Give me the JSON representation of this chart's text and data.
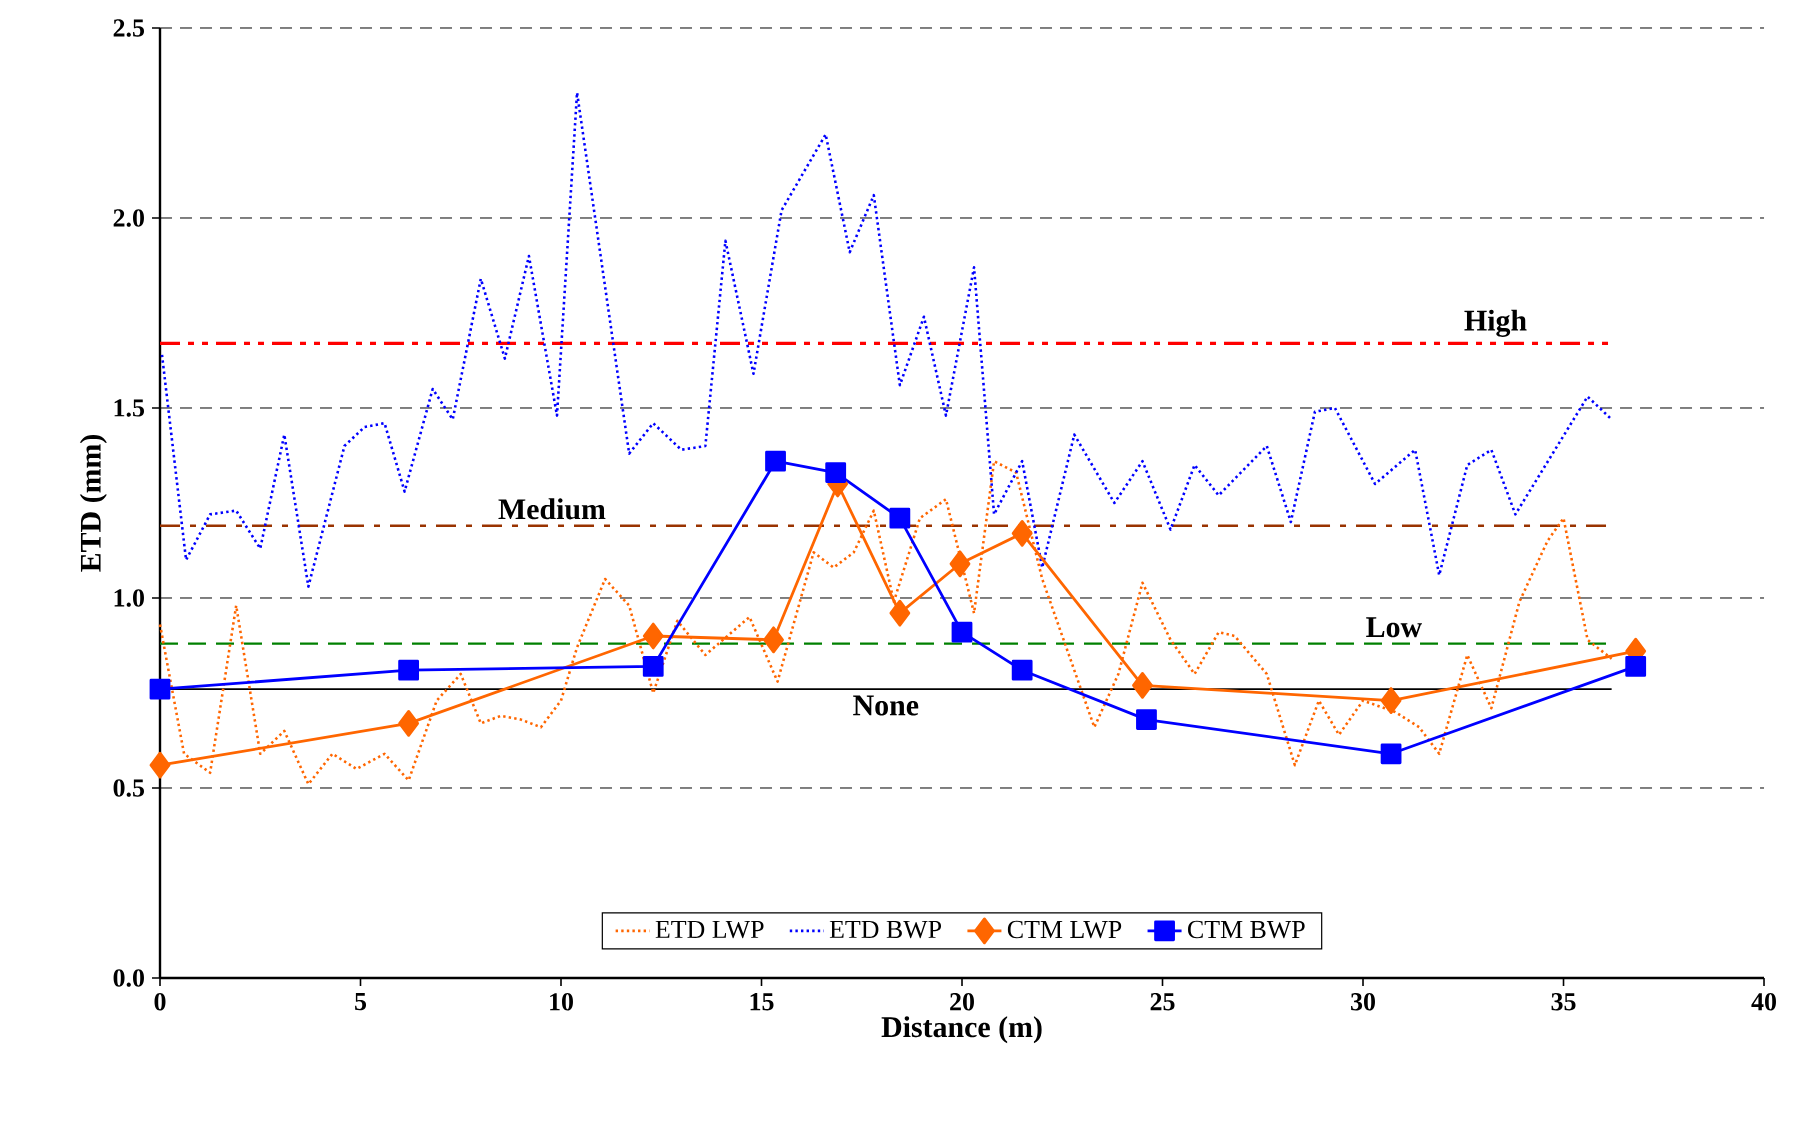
{
  "chart_data": {
    "type": "line",
    "xlabel": "Distance (m)",
    "ylabel": "ETD (mm)",
    "xlim": [
      0,
      40
    ],
    "xticks": [
      0,
      5,
      10,
      15,
      20,
      25,
      30,
      35,
      40
    ],
    "ylim": [
      0,
      2.5
    ],
    "yticks": [
      {
        "value": 0,
        "label": "0.0"
      },
      {
        "value": 0.5,
        "label": "0.5"
      },
      {
        "value": 1,
        "label": "1.0"
      },
      {
        "value": 1.5,
        "label": "1.5"
      },
      {
        "value": 2,
        "label": "2.0"
      },
      {
        "value": 2.5,
        "label": "2.5"
      }
    ],
    "grid": "y",
    "legend": "bottom",
    "ref_lines": [
      {
        "axis": "y",
        "value": 1.67,
        "label": "High",
        "color": "#ff0000",
        "line_style": "dashdotdot"
      },
      {
        "axis": "y",
        "value": 1.19,
        "label": "Medium",
        "color": "#993300",
        "line_style": "dashdot"
      },
      {
        "axis": "y",
        "value": 0.88,
        "label": "Low",
        "color": "#008000",
        "line_style": "dashed"
      },
      {
        "axis": "y",
        "value": 0.76,
        "label": "None",
        "color": "#000000",
        "line_style": "solid"
      }
    ],
    "series": [
      {
        "name": "ETD LWP",
        "color": "#ff6600",
        "marker": "none",
        "line_style": "dotted",
        "x": [
          0,
          0.6,
          1.25,
          1.9,
          2.5,
          3.1,
          3.7,
          4.3,
          4.9,
          5.6,
          6.2,
          6.9,
          7.5,
          8.0,
          8.5,
          9.0,
          9.5,
          10.0,
          10.4,
          11.1,
          11.7,
          12.3,
          12.9,
          13.6,
          14.7,
          15.4,
          16.3,
          16.8,
          17.3,
          17.8,
          18.3,
          18.95,
          19.6,
          20.3,
          20.8,
          21.35,
          22.0,
          22.7,
          23.3,
          23.9,
          24.5,
          25.2,
          25.8,
          26.4,
          26.8,
          27.6,
          28.3,
          28.9,
          29.4,
          30.0,
          30.8,
          31.4,
          31.9,
          32.6,
          33.2,
          33.9,
          34.6,
          35.0,
          35.6,
          36.2
        ],
        "values": [
          0.93,
          0.59,
          0.54,
          0.98,
          0.59,
          0.65,
          0.51,
          0.59,
          0.55,
          0.59,
          0.52,
          0.73,
          0.8,
          0.67,
          0.69,
          0.68,
          0.66,
          0.73,
          0.87,
          1.05,
          0.98,
          0.75,
          0.94,
          0.85,
          0.95,
          0.78,
          1.12,
          1.08,
          1.12,
          1.23,
          0.99,
          1.21,
          1.26,
          0.96,
          1.36,
          1.33,
          1.05,
          0.84,
          0.66,
          0.8,
          1.04,
          0.89,
          0.8,
          0.91,
          0.9,
          0.8,
          0.56,
          0.73,
          0.64,
          0.73,
          0.7,
          0.66,
          0.59,
          0.85,
          0.71,
          0.99,
          1.15,
          1.21,
          0.89,
          0.84
        ]
      },
      {
        "name": "ETD BWP",
        "color": "#0000ff",
        "marker": "none",
        "line_style": "dotted",
        "x": [
          0.05,
          0.65,
          1.25,
          1.9,
          2.5,
          3.1,
          3.7,
          4.6,
          5.1,
          5.6,
          6.1,
          6.8,
          7.3,
          8.0,
          8.6,
          9.2,
          9.9,
          10.4,
          11.7,
          12.3,
          13.0,
          13.6,
          14.1,
          14.8,
          15.5,
          16.6,
          17.2,
          17.8,
          18.45,
          19.05,
          19.6,
          20.3,
          20.8,
          21.5,
          22.0,
          22.8,
          23.8,
          24.5,
          25.2,
          25.8,
          26.4,
          27.6,
          28.2,
          28.8,
          29.3,
          30.3,
          31.3,
          31.9,
          32.6,
          33.2,
          33.8,
          35.6,
          36.2
        ],
        "values": [
          1.64,
          1.1,
          1.22,
          1.23,
          1.13,
          1.43,
          1.03,
          1.4,
          1.45,
          1.46,
          1.28,
          1.55,
          1.47,
          1.84,
          1.63,
          1.9,
          1.48,
          2.33,
          1.38,
          1.46,
          1.39,
          1.4,
          1.94,
          1.59,
          2.02,
          2.22,
          1.91,
          2.06,
          1.56,
          1.74,
          1.48,
          1.87,
          1.22,
          1.36,
          1.08,
          1.43,
          1.25,
          1.36,
          1.18,
          1.35,
          1.27,
          1.4,
          1.2,
          1.49,
          1.5,
          1.3,
          1.39,
          1.06,
          1.35,
          1.39,
          1.22,
          1.53,
          1.47
        ]
      },
      {
        "name": "CTM LWP",
        "color": "#ff6600",
        "marker": "diamond",
        "line_style": "solid",
        "x": [
          0,
          6.2,
          12.3,
          15.3,
          16.9,
          18.45,
          19.95,
          21.5,
          24.5,
          30.7,
          36.8
        ],
        "values": [
          0.56,
          0.67,
          0.9,
          0.89,
          1.3,
          0.96,
          1.09,
          1.17,
          0.77,
          0.73,
          0.86
        ]
      },
      {
        "name": "CTM BWP",
        "color": "#0000ff",
        "marker": "square",
        "line_style": "solid",
        "x": [
          0,
          6.2,
          12.3,
          15.35,
          16.85,
          18.45,
          20.0,
          21.5,
          24.6,
          30.7,
          36.8
        ],
        "values": [
          0.76,
          0.81,
          0.82,
          1.36,
          1.33,
          1.21,
          0.91,
          0.81,
          0.68,
          0.59,
          0.82
        ]
      }
    ]
  }
}
